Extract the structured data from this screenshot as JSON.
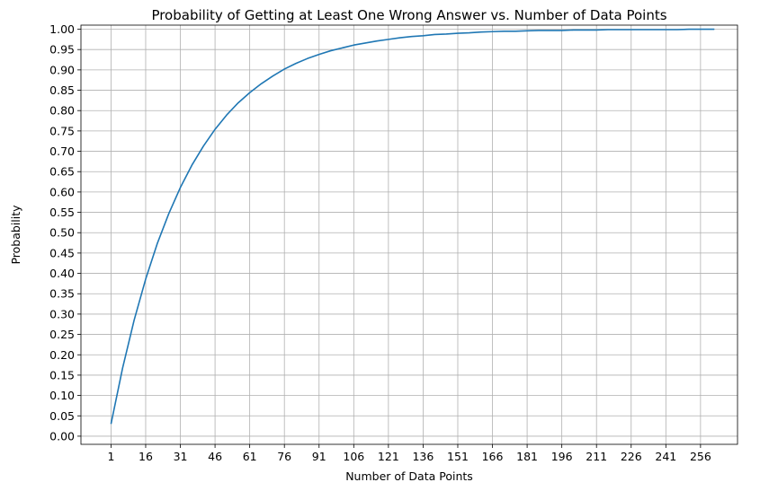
{
  "chart_data": {
    "type": "line",
    "title": "Probability of Getting at Least One Wrong Answer vs. Number of Data Points",
    "xlabel": "Number of Data Points",
    "ylabel": "Probability",
    "xlim": [
      -12,
      272
    ],
    "ylim": [
      -0.02,
      1.01
    ],
    "x_ticks": [
      1,
      16,
      31,
      46,
      61,
      76,
      91,
      106,
      121,
      136,
      151,
      166,
      181,
      196,
      211,
      226,
      241,
      256
    ],
    "y_ticks": [
      "0.00",
      "0.05",
      "0.10",
      "0.15",
      "0.20",
      "0.25",
      "0.30",
      "0.35",
      "0.40",
      "0.45",
      "0.50",
      "0.55",
      "0.60",
      "0.65",
      "0.70",
      "0.75",
      "0.80",
      "0.85",
      "0.90",
      "0.95",
      "1.00"
    ],
    "grid": true,
    "colors": {
      "line": "#1f77b4",
      "grid": "#b0b0b0"
    },
    "series": [
      {
        "x": [
          1,
          6,
          11,
          16,
          21,
          26,
          31,
          36,
          41,
          46,
          51,
          56,
          61,
          66,
          71,
          76,
          81,
          86,
          91,
          96,
          101,
          106,
          111,
          116,
          121,
          126,
          131,
          136,
          141,
          146,
          151,
          156,
          161,
          166,
          171,
          176,
          181,
          186,
          191,
          196,
          201,
          206,
          211,
          216,
          221,
          226,
          231,
          236,
          241,
          246,
          251,
          256,
          261,
          262
        ],
        "values": [
          0.03,
          0.167,
          0.285,
          0.386,
          0.473,
          0.547,
          0.611,
          0.666,
          0.713,
          0.754,
          0.789,
          0.819,
          0.844,
          0.866,
          0.885,
          0.902,
          0.916,
          0.928,
          0.938,
          0.947,
          0.954,
          0.961,
          0.966,
          0.971,
          0.975,
          0.979,
          0.982,
          0.984,
          0.987,
          0.988,
          0.99,
          0.991,
          0.993,
          0.994,
          0.995,
          0.995,
          0.996,
          0.997,
          0.997,
          0.997,
          0.998,
          0.998,
          0.998,
          0.999,
          0.999,
          0.999,
          0.999,
          0.999,
          0.999,
          0.999,
          1.0,
          1.0,
          1.0,
          1.0
        ]
      }
    ]
  }
}
